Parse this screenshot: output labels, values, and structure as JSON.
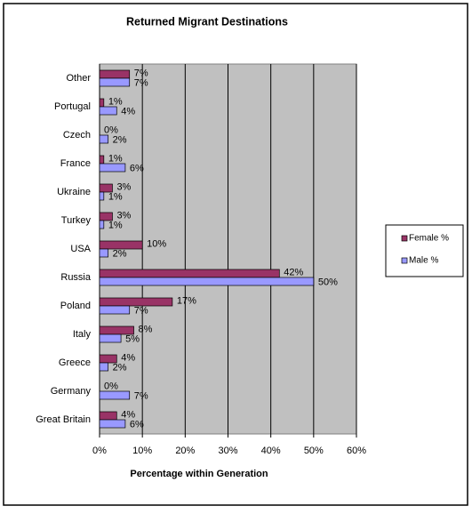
{
  "chart_data": {
    "type": "hbar",
    "title": "Returned Migrant Destinations",
    "x_label": "Percentage within Generation",
    "categories": [
      "Other",
      "Portugal",
      "Czech",
      "France",
      "Ukraine",
      "Turkey",
      "USA",
      "Russia",
      "Poland",
      "Italy",
      "Greece",
      "Germany",
      "Great Britain"
    ],
    "series": [
      {
        "name": "Female %",
        "color": "#993366",
        "values": [
          7,
          1,
          0,
          1,
          3,
          3,
          10,
          42,
          17,
          8,
          4,
          0,
          4
        ],
        "value_labels": [
          "7%",
          "1%",
          "0%",
          "1%",
          "3%",
          "3%",
          "10%",
          "42%",
          "17%",
          "8%",
          "4%",
          "0%",
          "4%"
        ]
      },
      {
        "name": "Male %",
        "color": "#9999ff",
        "values": [
          7,
          4,
          2,
          6,
          1,
          1,
          2,
          50,
          7,
          5,
          2,
          7,
          6
        ],
        "value_labels": [
          "7%",
          "4%",
          "2%",
          "6%",
          "1%",
          "1%",
          "2%",
          "50%",
          "7%",
          "5%",
          "2%",
          "7%",
          "6%"
        ]
      }
    ],
    "xlim": [
      0,
      60
    ],
    "xticks": [
      {
        "value": 0,
        "label": "0%"
      },
      {
        "value": 10,
        "label": "10%"
      },
      {
        "value": 20,
        "label": "20%"
      },
      {
        "value": 30,
        "label": "30%"
      },
      {
        "value": 40,
        "label": "40%"
      },
      {
        "value": 50,
        "label": "50%"
      },
      {
        "value": 60,
        "label": "60%"
      }
    ],
    "grid": true,
    "legend": "right"
  }
}
